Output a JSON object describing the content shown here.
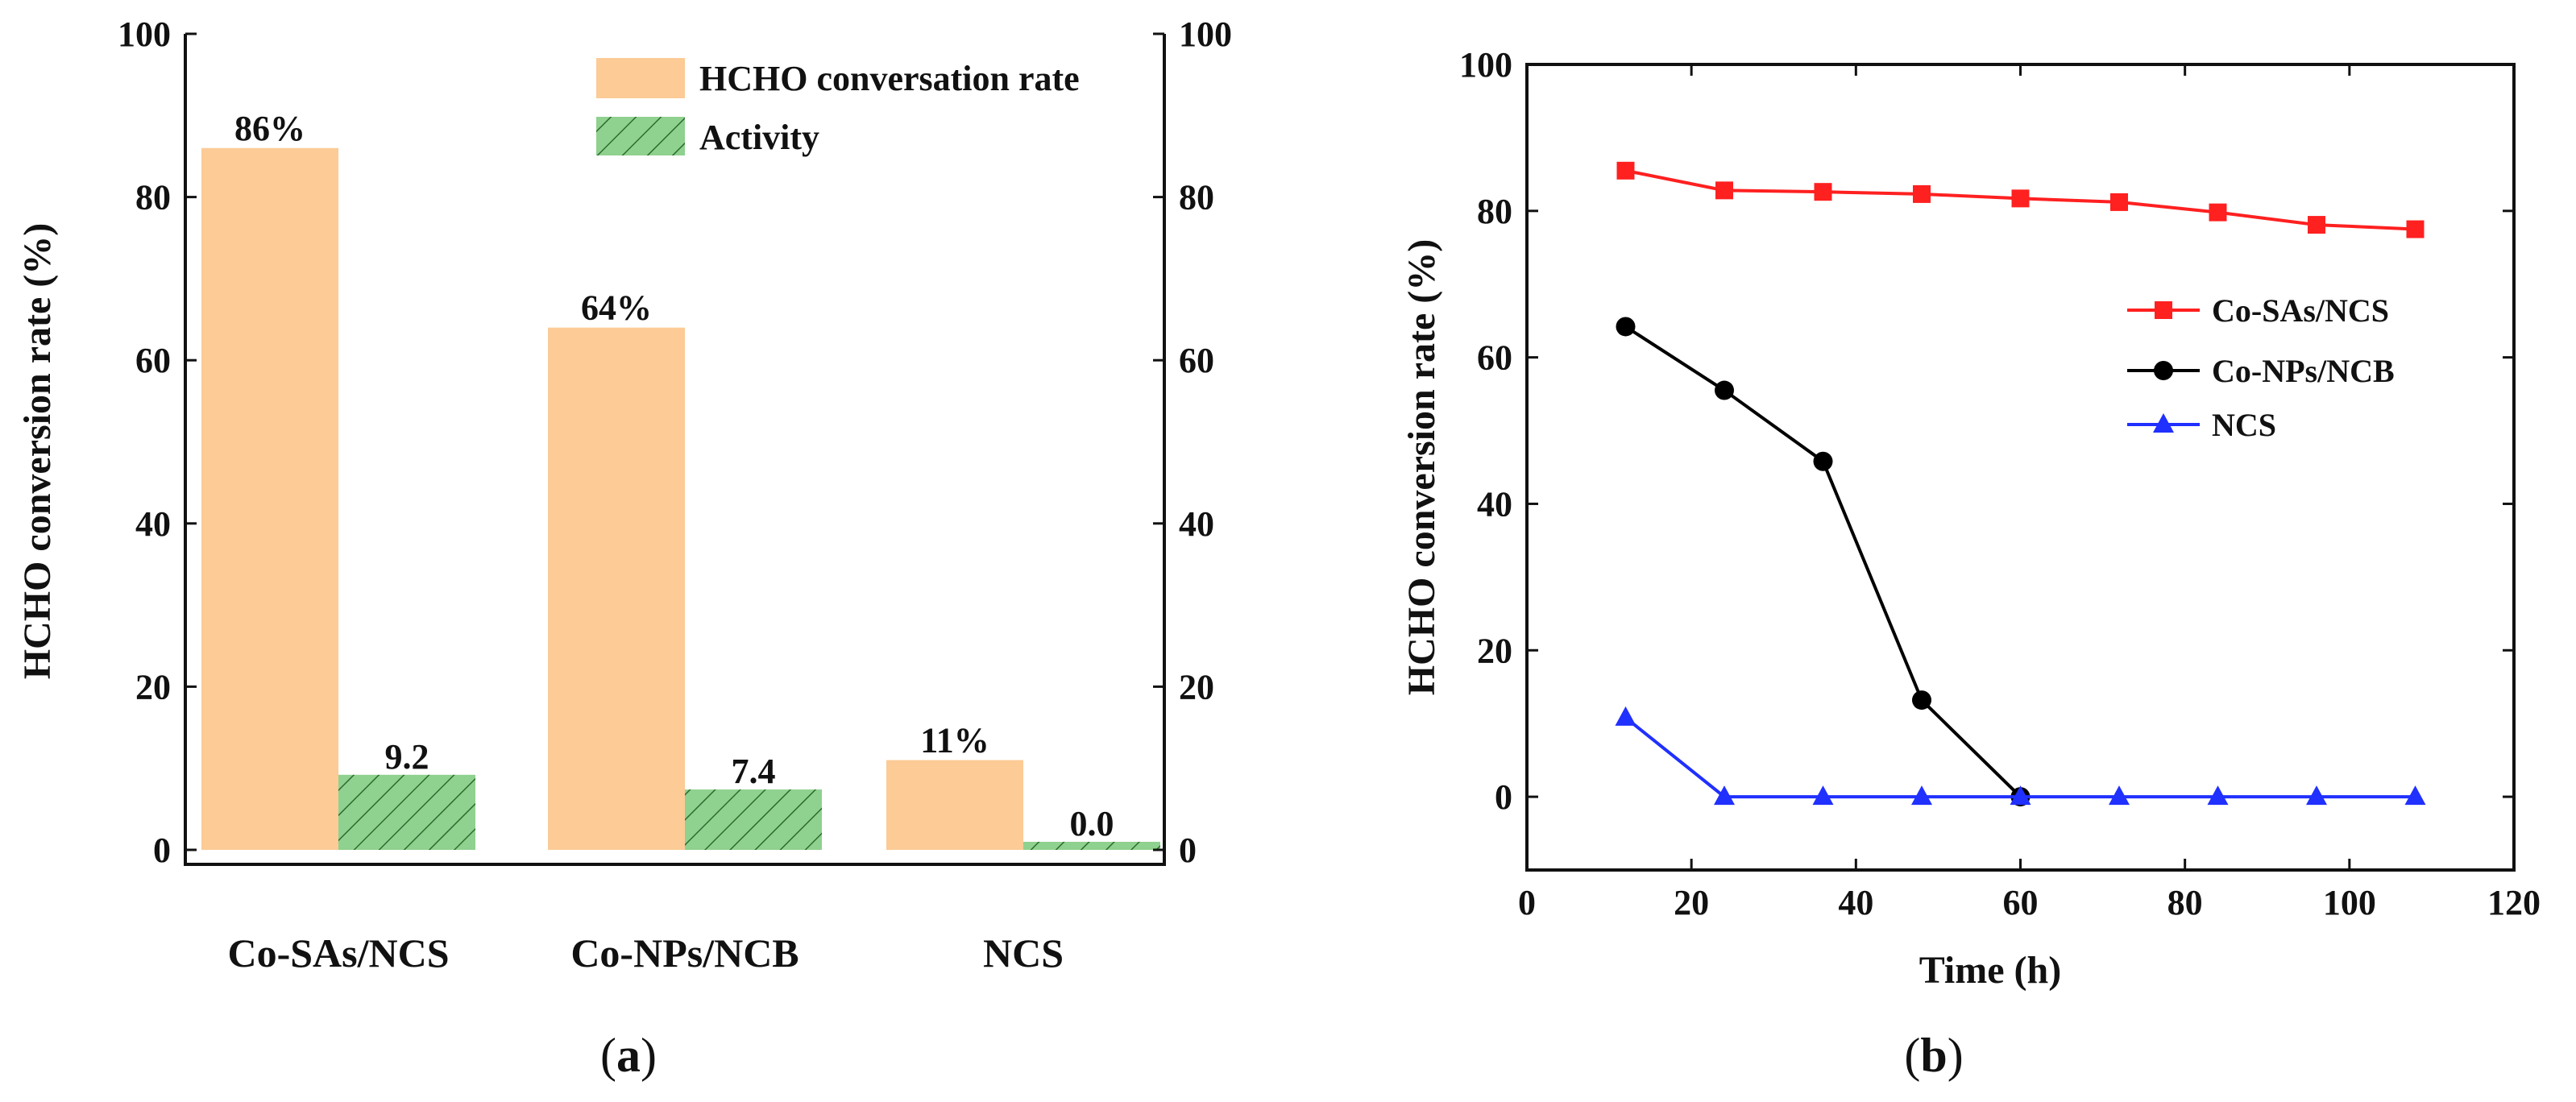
{
  "chart_data": [
    {
      "type": "bar",
      "panel_label": "a",
      "categories": [
        "Co-SAs/NCS",
        "Co-NPs/NCB",
        "NCS"
      ],
      "series": [
        {
          "name": "HCHO conversation rate",
          "color": "#FCCB96",
          "values": [
            86,
            64,
            11
          ],
          "data_labels": [
            "86%",
            "64%",
            "11%"
          ]
        },
        {
          "name": "Activity",
          "color": "#8FD18F",
          "hatch_color": "#2E6B2E",
          "values": [
            9.2,
            7.4,
            0.0
          ],
          "data_labels": [
            "9.2",
            "7.4",
            "0.0"
          ]
        }
      ],
      "ylabel": "HCHO conversion rate (%)",
      "ylim": [
        0,
        100
      ],
      "yticks": [
        0,
        20,
        40,
        60,
        80,
        100
      ],
      "y2lim": [
        0,
        100
      ],
      "y2ticks": [
        0,
        20,
        40,
        60,
        80,
        100
      ],
      "legend_position": "top-right"
    },
    {
      "type": "line",
      "panel_label": "b",
      "xlabel": "Time (h)",
      "ylabel": "HCHO conversion rate (%)",
      "xlim": [
        0,
        120
      ],
      "xticks": [
        0,
        20,
        40,
        60,
        80,
        100,
        120
      ],
      "ylim": [
        -10,
        100
      ],
      "yticks": [
        0,
        20,
        40,
        60,
        80,
        100
      ],
      "legend_position": "right",
      "series": [
        {
          "name": "Co-SAs/NCS",
          "color": "#FF2020",
          "marker": "square",
          "x": [
            12,
            24,
            36,
            48,
            60,
            72,
            84,
            96,
            108
          ],
          "y": [
            85.5,
            82.8,
            82.6,
            82.3,
            81.7,
            81.2,
            79.8,
            78.1,
            77.5
          ]
        },
        {
          "name": "Co-NPs/NCB",
          "color": "#000000",
          "marker": "circle",
          "x": [
            12,
            24,
            36,
            48,
            60
          ],
          "y": [
            64.2,
            55.5,
            45.8,
            13.2,
            0
          ]
        },
        {
          "name": "NCS",
          "color": "#2030FF",
          "marker": "triangle",
          "x": [
            12,
            24,
            36,
            48,
            60,
            72,
            84,
            96,
            108
          ],
          "y": [
            10.8,
            0,
            0,
            0,
            0,
            0,
            0,
            0,
            0
          ]
        }
      ]
    }
  ]
}
